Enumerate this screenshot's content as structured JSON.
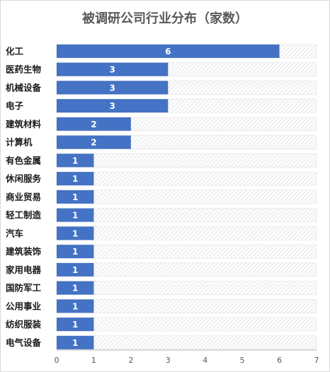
{
  "chart_data": {
    "type": "bar",
    "orientation": "horizontal",
    "title": "被调研公司行业分布（家数）",
    "categories": [
      "化工",
      "医药生物",
      "机械设备",
      "电子",
      "建筑材料",
      "计算机",
      "有色金属",
      "休闲服务",
      "商业贸易",
      "轻工制造",
      "汽车",
      "建筑装饰",
      "家用电器",
      "国防军工",
      "公用事业",
      "纺织服装",
      "电气设备"
    ],
    "values": [
      6,
      3,
      3,
      3,
      2,
      2,
      1,
      1,
      1,
      1,
      1,
      1,
      1,
      1,
      1,
      1,
      1
    ],
    "xlim": [
      0,
      7
    ],
    "xticks": [
      "0",
      "1",
      "2",
      "3",
      "4",
      "5",
      "6",
      "7"
    ],
    "data_labels": true,
    "background_pattern": "diagonal-hatch",
    "grid": false,
    "legend": "none",
    "colors": {
      "bar": "#4472c4",
      "hatch": "#d0d0d0",
      "track_border": "#e6e6e6",
      "axis": "#a6a6a6"
    }
  }
}
